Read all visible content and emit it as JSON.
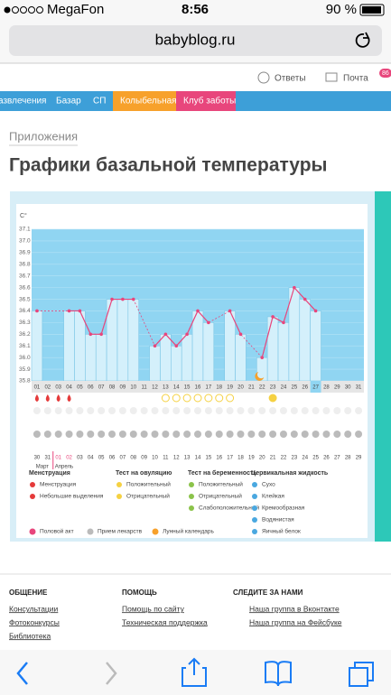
{
  "status": {
    "carrier": "MegaFon",
    "time": "8:56",
    "battery": "90 %"
  },
  "url": "babyblog.ru",
  "topbar": {
    "links": [
      "Ответы",
      "Почта"
    ],
    "badge": "86"
  },
  "nav": [
    "азвлечения",
    "Базар",
    "СП",
    "Колыбельная",
    "Клуб заботы"
  ],
  "breadcrumb": "Приложения",
  "title": "Графики базальной температуры",
  "chart_data": {
    "type": "line",
    "y_label": "C°",
    "color": "#e8467c",
    "bar_color": "#d4f0fb",
    "background": "#90d5f2",
    "categories": [
      "01",
      "02",
      "03",
      "04",
      "05",
      "06",
      "07",
      "08",
      "09",
      "10",
      "11",
      "12",
      "13",
      "14",
      "15",
      "16",
      "17",
      "18",
      "19",
      "20",
      "21",
      "22",
      "23",
      "24",
      "25",
      "26",
      "27",
      "28",
      "29",
      "30",
      "31"
    ],
    "dates": [
      "30",
      "31",
      "01",
      "02",
      "03",
      "04",
      "05",
      "06",
      "07",
      "08",
      "09",
      "10",
      "11",
      "12",
      "13",
      "14",
      "15",
      "16",
      "17",
      "18",
      "19",
      "20",
      "21",
      "22",
      "23",
      "24",
      "25",
      "26",
      "27",
      "28",
      "29"
    ],
    "months": [
      "Март",
      "Апрель"
    ],
    "values": [
      36.4,
      null,
      null,
      36.4,
      36.4,
      36.2,
      36.2,
      36.5,
      36.5,
      36.5,
      null,
      36.1,
      36.2,
      36.1,
      36.2,
      36.4,
      36.3,
      null,
      36.4,
      36.2,
      null,
      36.0,
      36.35,
      36.3,
      36.6,
      36.5,
      36.4,
      null,
      null,
      null,
      null
    ],
    "ylim": [
      35.8,
      37.1
    ],
    "yticks": [
      35.8,
      35.9,
      {
        "value": 36,
        "label": "36.0"
      },
      36.1,
      36.2,
      36.3,
      36.4,
      36.5,
      36.6,
      36.7,
      36.8,
      36.9,
      {
        "value": 37,
        "label": "37.0"
      },
      37.1
    ],
    "highlight_index": 26
  },
  "legend": [
    {
      "title": "Менструация",
      "items": [
        "Менструация",
        "Небольшие выделения"
      ]
    },
    {
      "title": "Тест на овуляцию",
      "items": [
        "Положительный",
        "Отрицательный"
      ]
    },
    {
      "title": "Тест на беременность",
      "items": [
        "Положительный",
        "Отрицательный",
        "Слабоположительный"
      ]
    },
    {
      "title": "Цервикальная жидкость",
      "items": [
        "Сухо",
        "Клейкая",
        "Кремообразная",
        "Водянистая",
        "Яичный белок"
      ]
    }
  ],
  "legend2": [
    "Половой акт",
    "Прием лекарств",
    "Лунный календарь"
  ],
  "footer": [
    {
      "title": "ОБЩЕНИЕ",
      "links": [
        "Консультации",
        "Фотоконкурсы",
        "Библиотека"
      ]
    },
    {
      "title": "ПОМОЩЬ",
      "links": [
        "Помощь по сайту",
        "Техническая поддержка"
      ]
    },
    {
      "title": "СЛЕДИТЕ ЗА НАМИ",
      "links": [
        "Наша группа в Вконтакте",
        "Наша группа на Фейсбуке"
      ]
    }
  ]
}
